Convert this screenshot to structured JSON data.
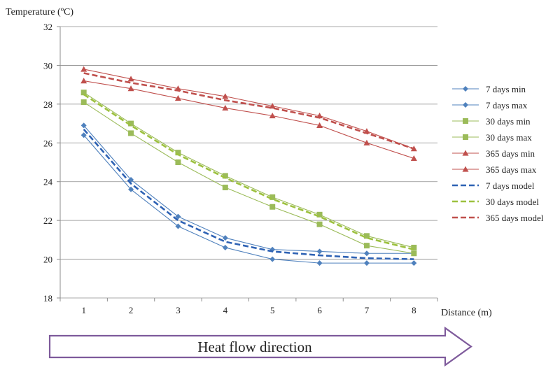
{
  "chart_data": {
    "type": "line",
    "ylabel": "Temperature (ºC)",
    "xlabel": "Distance (m)",
    "x": [
      1,
      2,
      3,
      4,
      5,
      6,
      7,
      8
    ],
    "xlim": [
      0.5,
      8.5
    ],
    "ylim": [
      18,
      32
    ],
    "yticks": [
      18,
      20,
      22,
      24,
      26,
      28,
      30,
      32
    ],
    "grid": "horizontal",
    "legend_position": "right",
    "series": [
      {
        "name": "7 days min",
        "marker": "diamond",
        "dash": false,
        "color": "#4F81BD",
        "values": [
          26.4,
          23.6,
          21.7,
          20.6,
          20.0,
          19.8,
          19.8,
          19.8
        ]
      },
      {
        "name": "7 days max",
        "marker": "diamond",
        "dash": false,
        "color": "#4F81BD",
        "values": [
          26.9,
          24.1,
          22.2,
          21.1,
          20.5,
          20.4,
          20.3,
          20.3
        ]
      },
      {
        "name": "30 days min",
        "marker": "square",
        "dash": false,
        "color": "#9BBB59",
        "values": [
          28.1,
          26.5,
          25.0,
          23.7,
          22.7,
          21.8,
          20.7,
          20.3
        ]
      },
      {
        "name": "30 days max",
        "marker": "square",
        "dash": false,
        "color": "#9BBB59",
        "values": [
          28.6,
          27.0,
          25.5,
          24.3,
          23.2,
          22.3,
          21.2,
          20.6
        ]
      },
      {
        "name": "365 days min",
        "marker": "triangle",
        "dash": false,
        "color": "#C0504D",
        "values": [
          29.2,
          28.8,
          28.3,
          27.8,
          27.4,
          26.9,
          26.0,
          25.2
        ]
      },
      {
        "name": "365 days max",
        "marker": "triangle",
        "dash": false,
        "color": "#C0504D",
        "values": [
          29.8,
          29.3,
          28.8,
          28.4,
          27.9,
          27.4,
          26.6,
          25.7
        ]
      },
      {
        "name": "7 days model",
        "marker": "none",
        "dash": true,
        "color": "#2E62B4",
        "values": [
          26.7,
          23.9,
          22.0,
          20.9,
          20.4,
          20.2,
          20.05,
          20.0
        ]
      },
      {
        "name": "30 days model",
        "marker": "none",
        "dash": true,
        "color": "#9DC13F",
        "values": [
          28.5,
          26.9,
          25.4,
          24.2,
          23.1,
          22.2,
          21.1,
          20.5
        ]
      },
      {
        "name": "365 days model",
        "marker": "none",
        "dash": true,
        "color": "#C0504D",
        "values": [
          29.6,
          29.1,
          28.7,
          28.2,
          27.8,
          27.3,
          26.5,
          25.7
        ]
      }
    ],
    "annotation": {
      "text": "Heat flow direction",
      "border_color": "#7E5A9B"
    }
  },
  "colors": {
    "grid": "#8c8c8c",
    "axis": "#8c8c8c"
  }
}
